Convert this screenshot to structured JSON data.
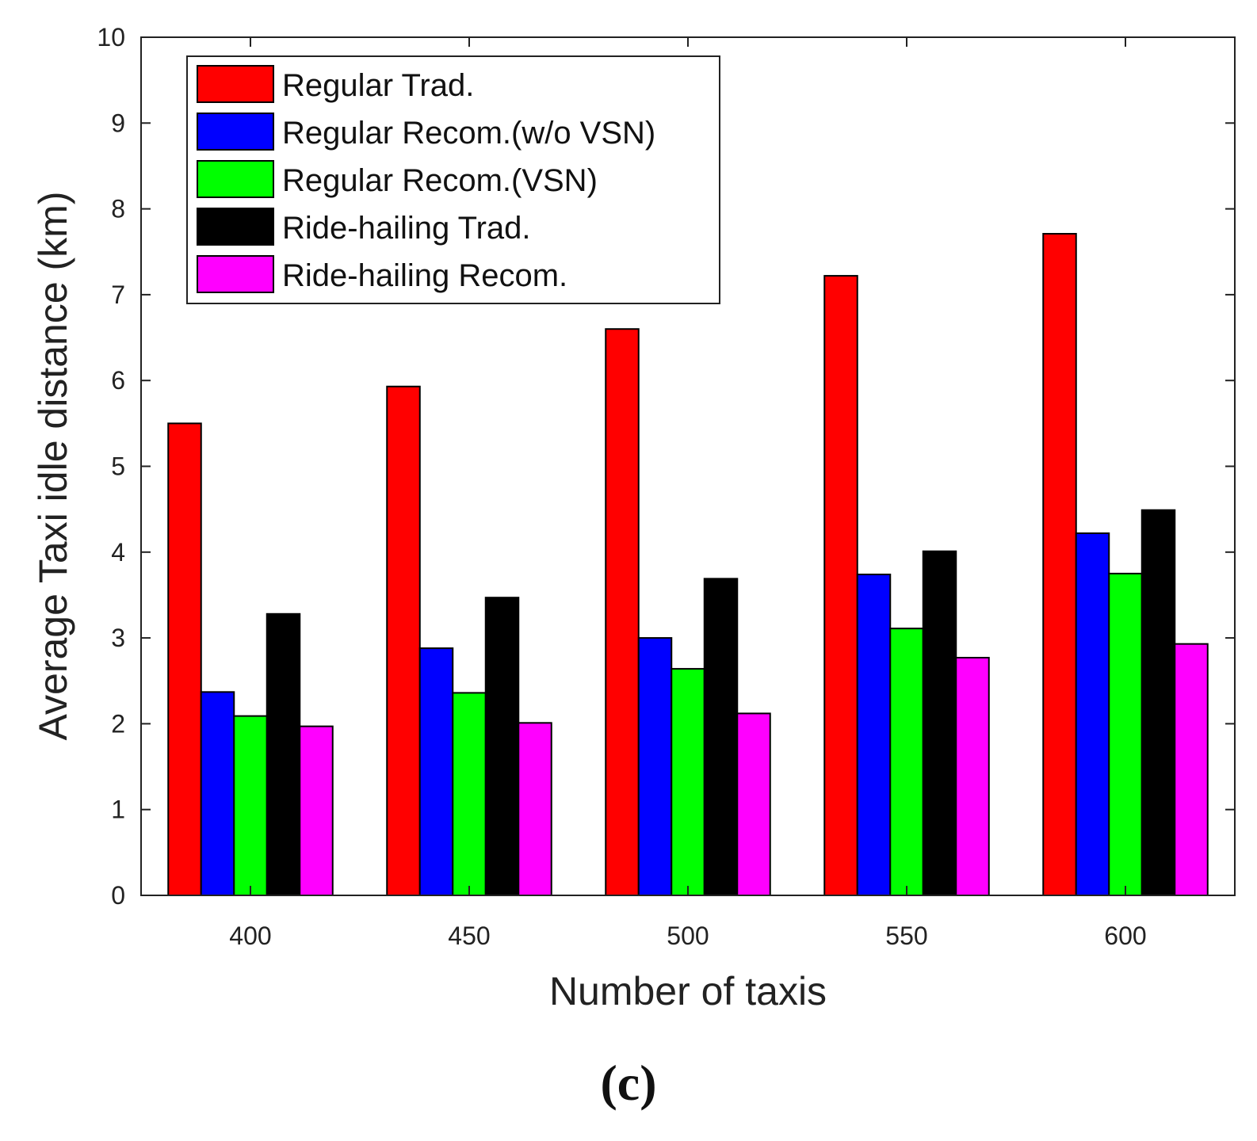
{
  "chart_data": {
    "type": "bar",
    "title": "",
    "xlabel": "Number of taxis",
    "ylabel": "Average Taxi idle distance (km)",
    "ylim": [
      0,
      10
    ],
    "yticks": [
      0,
      1,
      2,
      3,
      4,
      5,
      6,
      7,
      8,
      9,
      10
    ],
    "categories": [
      "400",
      "450",
      "500",
      "550",
      "600"
    ],
    "legend_position": "top-left",
    "grid": false,
    "series": [
      {
        "name": "Regular Trad.",
        "color": "#ff0000",
        "values": [
          5.5,
          5.93,
          6.6,
          7.22,
          7.71
        ]
      },
      {
        "name": "Regular Recom.(w/o VSN)",
        "color": "#0000ff",
        "values": [
          2.37,
          2.88,
          3.0,
          3.74,
          4.22
        ]
      },
      {
        "name": "Regular Recom.(VSN)",
        "color": "#00ff00",
        "values": [
          2.09,
          2.36,
          2.64,
          3.11,
          3.75
        ]
      },
      {
        "name": "Ride-hailing Trad.",
        "color": "#000000",
        "values": [
          3.28,
          3.47,
          3.69,
          4.01,
          4.49
        ]
      },
      {
        "name": "Ride-hailing Recom.",
        "color": "#ff00ff",
        "values": [
          1.97,
          2.01,
          2.12,
          2.77,
          2.93
        ]
      }
    ]
  },
  "caption": "(c)"
}
